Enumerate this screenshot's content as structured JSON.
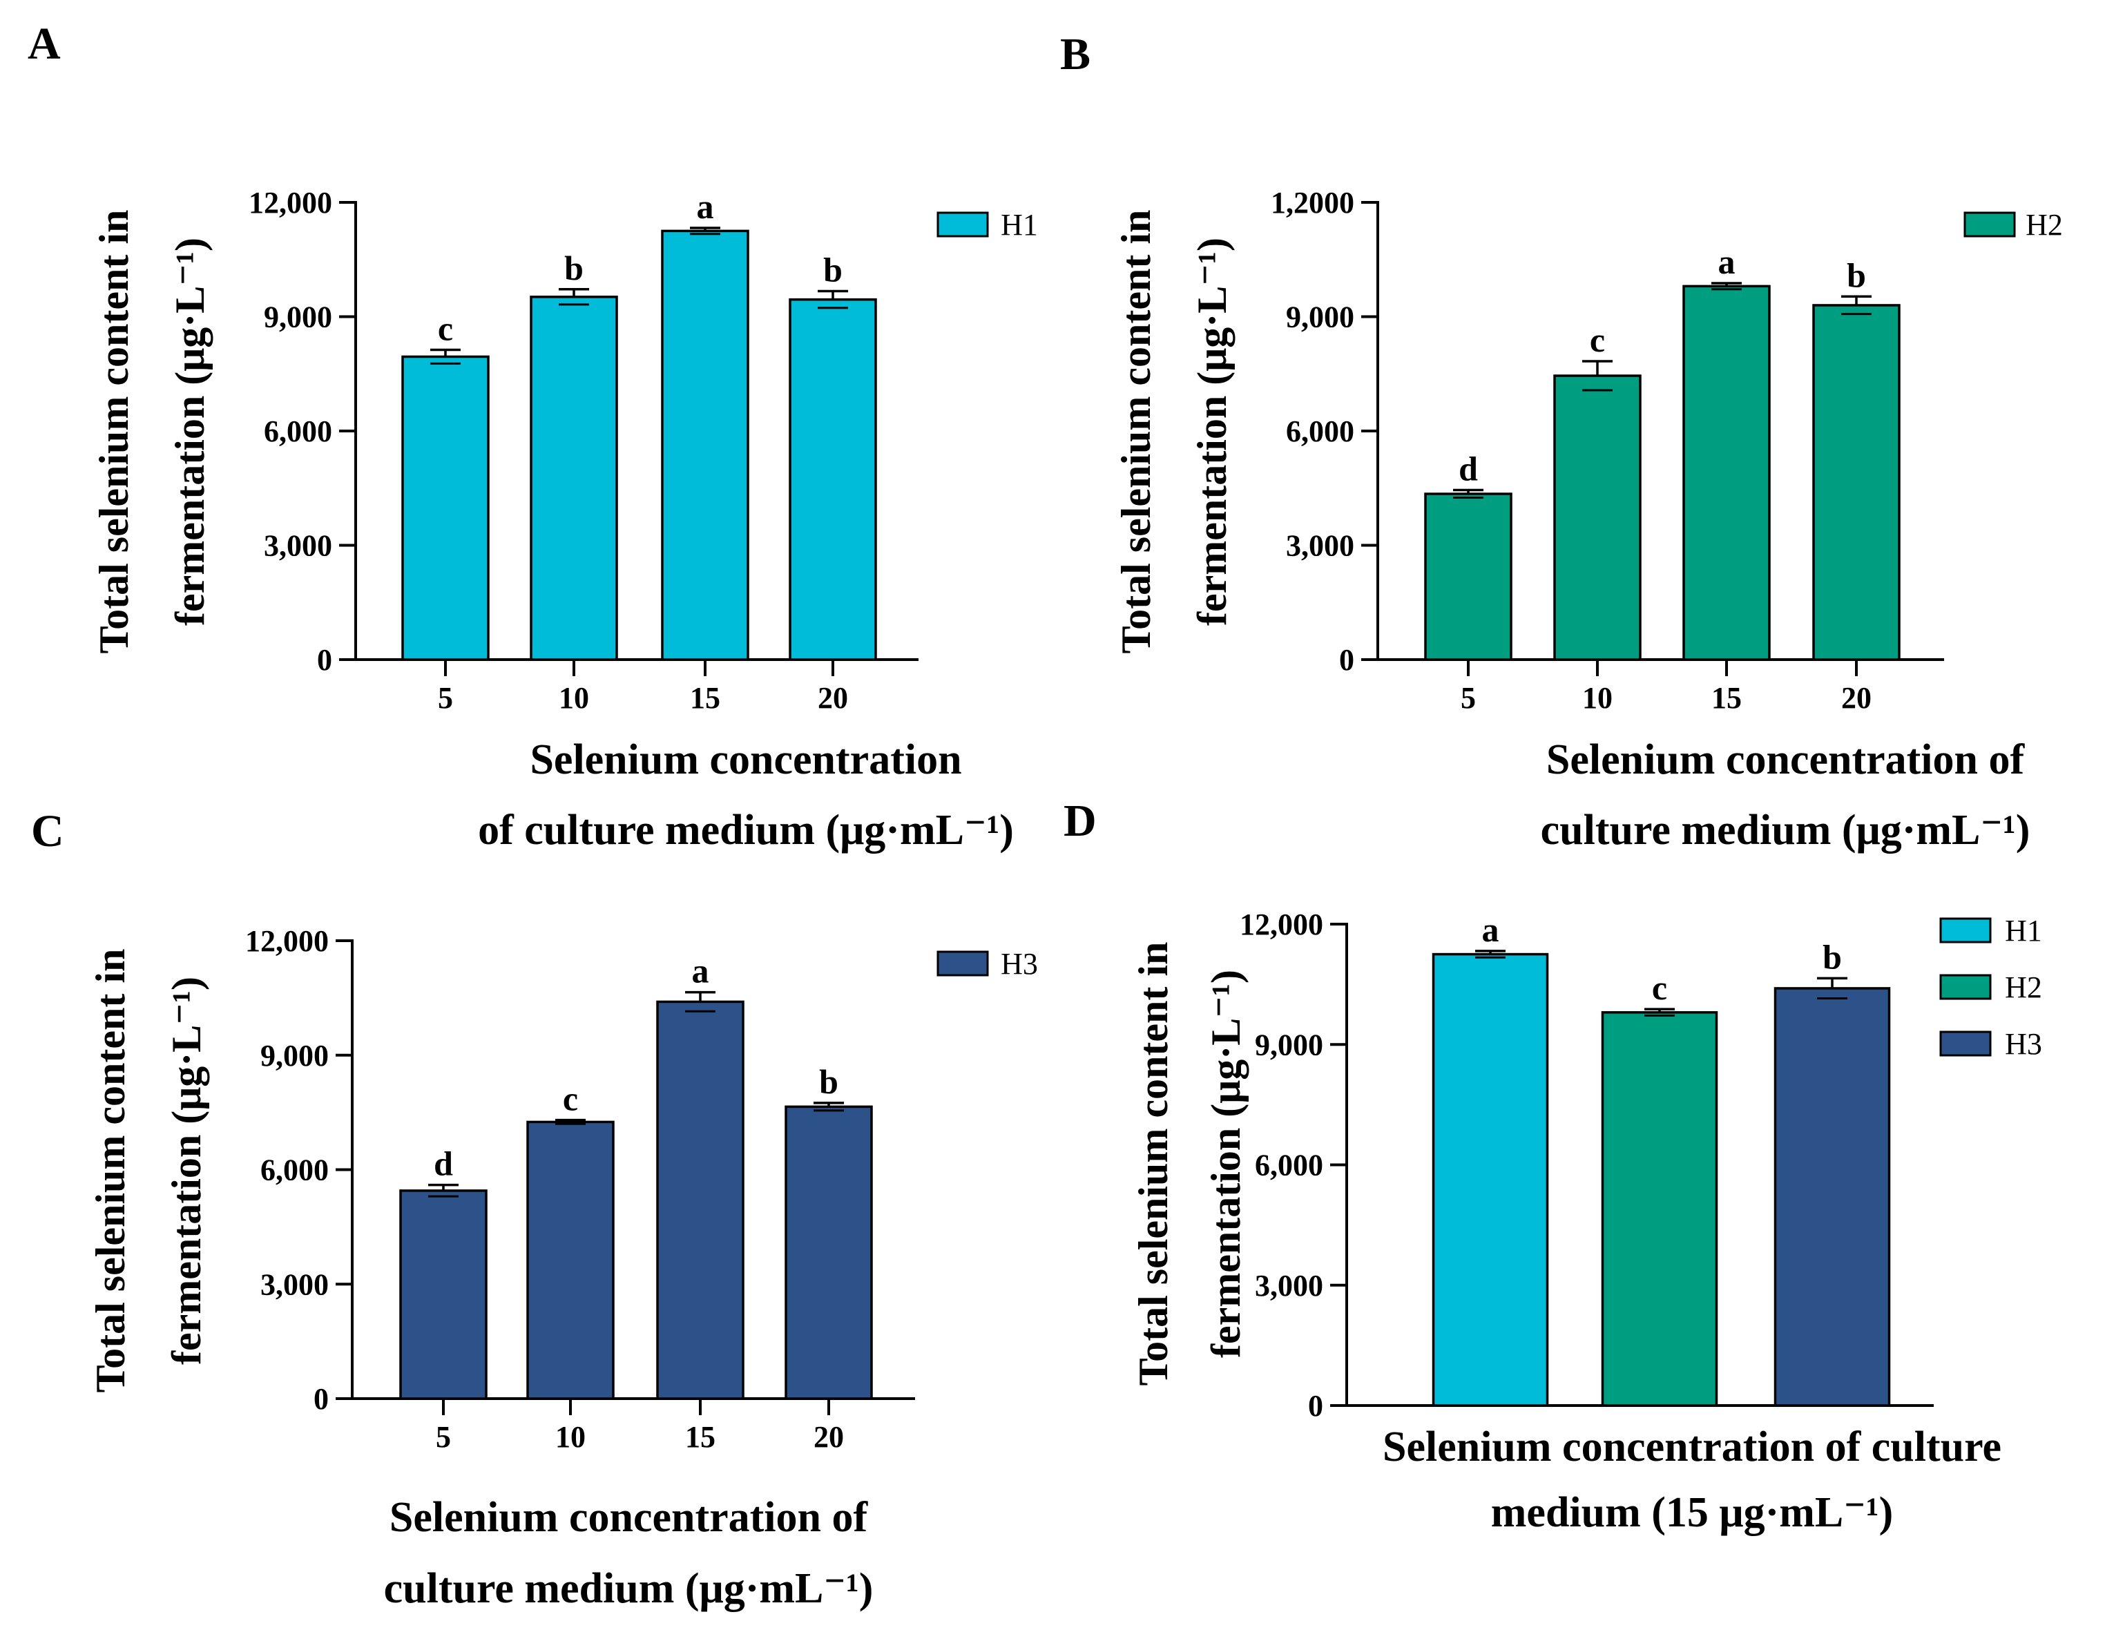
{
  "colors": {
    "H1": "#00BCD8",
    "H2": "#009E80",
    "H3": "#2D528A",
    "axis": "#000000"
  },
  "chart_data": [
    {
      "panel": "A",
      "type": "bar",
      "categories": [
        "5",
        "10",
        "15",
        "20"
      ],
      "series": [
        {
          "name": "H1",
          "values": [
            7950,
            9520,
            11250,
            9450
          ],
          "errors": [
            180,
            200,
            80,
            220
          ],
          "letters": [
            "c",
            "b",
            "a",
            "b"
          ]
        }
      ],
      "ylim": [
        0,
        12000
      ],
      "yticks": [
        "0",
        "3,000",
        "6,000",
        "9,000",
        "12,000"
      ],
      "ylabel": [
        "Total selenium content in",
        "fermentation (μg·L⁻¹)"
      ],
      "xlabel": [
        "Selenium concentration",
        "of culture medium (μg·mL⁻¹)"
      ],
      "legend": [
        "H1"
      ],
      "legend_position": "top-right"
    },
    {
      "panel": "B",
      "type": "bar",
      "categories": [
        "5",
        "10",
        "15",
        "20"
      ],
      "series": [
        {
          "name": "H2",
          "values": [
            4350,
            7450,
            9800,
            9300
          ],
          "errors": [
            100,
            380,
            80,
            230
          ],
          "letters": [
            "d",
            "c",
            "a",
            "b"
          ]
        }
      ],
      "ylim": [
        0,
        12000
      ],
      "yticks": [
        "0",
        "3,000",
        "6,000",
        "9,000",
        "1,2000"
      ],
      "ylabel": [
        "Total selenium content in",
        "fermentation (μg·L⁻¹)"
      ],
      "xlabel": [
        "Selenium concentration of",
        "culture medium (μg·mL⁻¹)"
      ],
      "legend": [
        "H2"
      ],
      "legend_position": "top-right"
    },
    {
      "panel": "C",
      "type": "bar",
      "categories": [
        "5",
        "10",
        "15",
        "20"
      ],
      "series": [
        {
          "name": "H3",
          "values": [
            5450,
            7250,
            10400,
            7650
          ],
          "errors": [
            150,
            50,
            250,
            100
          ],
          "letters": [
            "d",
            "c",
            "a",
            "b"
          ]
        }
      ],
      "ylim": [
        0,
        12000
      ],
      "yticks": [
        "0",
        "3,000",
        "6,000",
        "9,000",
        "12,000"
      ],
      "ylabel": [
        "Total selenium content in",
        "fermentation (μg·L⁻¹)"
      ],
      "xlabel": [
        "Selenium concentration of",
        "culture medium (μg·mL⁻¹)"
      ],
      "legend": [
        "H3"
      ],
      "legend_position": "top-right"
    },
    {
      "panel": "D",
      "type": "bar",
      "categories": [
        "H1",
        "H2",
        "H3"
      ],
      "series": [
        {
          "name": "15 μg·mL⁻¹",
          "values": [
            11250,
            9800,
            10400
          ],
          "errors": [
            80,
            80,
            250
          ],
          "letters": [
            "a",
            "c",
            "b"
          ]
        }
      ],
      "ylim": [
        0,
        12000
      ],
      "yticks": [
        "0",
        "3,000",
        "6,000",
        "9,000",
        "12,000"
      ],
      "ylabel": [
        "Total selenium content in",
        "fermentation (μg·L⁻¹)"
      ],
      "xlabel": [
        "Selenium concentration of culture",
        "medium (15 μg·mL⁻¹)"
      ],
      "legend": [
        "H1",
        "H2",
        "H3"
      ],
      "legend_position": "top-right"
    }
  ]
}
